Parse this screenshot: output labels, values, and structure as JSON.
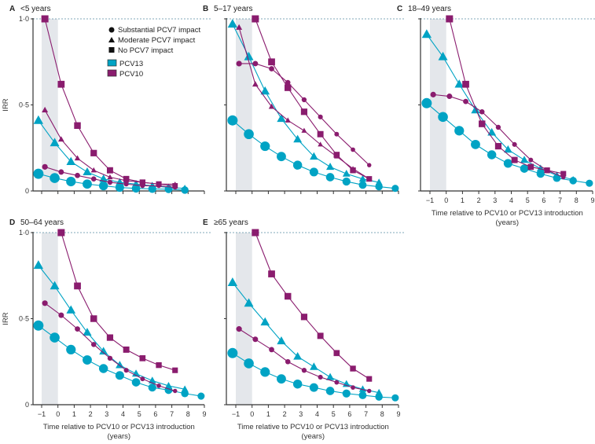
{
  "chart_data": {
    "type": "line",
    "y_axis_label": "IRR",
    "x_axis_label_line1": "Time relative to PCV10 or PCV13 introduction",
    "x_axis_label_line2": "(years)",
    "x_ticks": [
      "−1",
      "0",
      "1",
      "2",
      "3",
      "4",
      "5",
      "6",
      "7",
      "8",
      "9"
    ],
    "y_ticks": [
      "0",
      "0·5",
      "1·0"
    ],
    "ylim": [
      0,
      1
    ],
    "xlim": [
      -1,
      9
    ],
    "reference_line": 1.0,
    "shaded_interval": [
      -1,
      0
    ],
    "colors": {
      "PCV13": "#00a3c4",
      "PCV10": "#8a1c6e",
      "shade": "#e4e7eb"
    },
    "legend": {
      "placement": "top-right of panel A",
      "markers": [
        "Substantial PCV7 impact",
        "Moderate PCV7 impact",
        "No PCV7 impact"
      ],
      "vaccines": [
        "PCV13",
        "PCV10"
      ]
    },
    "panels": [
      {
        "letter": "A",
        "title": "<5 years",
        "series": [
          {
            "vaccine": "PCV13",
            "impact": "substantial",
            "x": [
              -1,
              0,
              1,
              2,
              3,
              4,
              5,
              6,
              7,
              8
            ],
            "values": [
              0.1,
              0.075,
              0.055,
              0.04,
              0.03,
              0.02,
              0.015,
              0.012,
              0.01,
              0.005
            ]
          },
          {
            "vaccine": "PCV13",
            "impact": "moderate",
            "x": [
              -1,
              0,
              1,
              2,
              3,
              4,
              5,
              6,
              7,
              8
            ],
            "values": [
              0.41,
              0.28,
              0.17,
              0.11,
              0.07,
              0.05,
              0.04,
              0.03,
              0.02,
              0.015
            ]
          },
          {
            "vaccine": "PCV10",
            "impact": "substantial",
            "x": [
              -1,
              0,
              1,
              2,
              3,
              4,
              5,
              6,
              7
            ],
            "values": [
              0.14,
              0.11,
              0.09,
              0.07,
              0.05,
              0.04,
              0.03,
              0.03,
              0.02
            ]
          },
          {
            "vaccine": "PCV10",
            "impact": "moderate",
            "x": [
              -1,
              0,
              1,
              2,
              3,
              4,
              5,
              6,
              7
            ],
            "values": [
              0.47,
              0.3,
              0.19,
              0.12,
              0.08,
              0.06,
              0.05,
              0.04,
              0.04
            ]
          },
          {
            "vaccine": "PCV10",
            "impact": "none",
            "x": [
              -1,
              0,
              1,
              2,
              3,
              4,
              5,
              6,
              7
            ],
            "values": [
              1.0,
              0.62,
              0.38,
              0.22,
              0.12,
              0.07,
              0.05,
              0.04,
              0.03
            ]
          }
        ]
      },
      {
        "letter": "B",
        "title": "5–17 years",
        "series": [
          {
            "vaccine": "PCV13",
            "impact": "substantial",
            "x": [
              -1,
              0,
              1,
              2,
              3,
              4,
              5,
              6,
              7,
              8,
              9
            ],
            "values": [
              0.41,
              0.33,
              0.26,
              0.2,
              0.15,
              0.11,
              0.08,
              0.055,
              0.035,
              0.025,
              0.015
            ]
          },
          {
            "vaccine": "PCV13",
            "impact": "moderate",
            "x": [
              -1,
              0,
              1,
              2,
              3,
              4,
              5,
              6,
              7,
              8
            ],
            "values": [
              0.97,
              0.78,
              0.58,
              0.42,
              0.3,
              0.2,
              0.14,
              0.1,
              0.07,
              0.05
            ]
          },
          {
            "vaccine": "PCV10",
            "impact": "substantial",
            "x": [
              -1,
              0,
              1,
              2,
              3,
              4,
              5,
              6,
              7
            ],
            "values": [
              0.74,
              0.74,
              0.71,
              0.63,
              0.53,
              0.43,
              0.33,
              0.24,
              0.15
            ]
          },
          {
            "vaccine": "PCV10",
            "impact": "moderate",
            "x": [
              -1,
              0,
              1,
              2,
              3,
              4,
              5,
              6,
              7
            ],
            "values": [
              0.95,
              0.62,
              0.49,
              0.41,
              0.35,
              0.27,
              0.2,
              0.13,
              0.07
            ]
          },
          {
            "vaccine": "PCV10",
            "impact": "none",
            "x": [
              0,
              1,
              2,
              3,
              4,
              5,
              6,
              7
            ],
            "values": [
              1.0,
              0.75,
              0.6,
              0.46,
              0.33,
              0.21,
              0.12,
              0.07
            ]
          }
        ]
      },
      {
        "letter": "C",
        "title": "18–49 years",
        "series": [
          {
            "vaccine": "PCV13",
            "impact": "substantial",
            "x": [
              -1,
              0,
              1,
              2,
              3,
              4,
              5,
              6,
              7,
              8,
              9
            ],
            "values": [
              0.51,
              0.43,
              0.35,
              0.27,
              0.21,
              0.16,
              0.13,
              0.1,
              0.075,
              0.06,
              0.045
            ]
          },
          {
            "vaccine": "PCV13",
            "impact": "moderate",
            "x": [
              -1,
              0,
              1,
              2,
              3,
              4,
              5,
              6,
              7,
              8
            ],
            "values": [
              0.91,
              0.78,
              0.62,
              0.47,
              0.34,
              0.24,
              0.18,
              0.13,
              0.09,
              0.065
            ]
          },
          {
            "vaccine": "PCV10",
            "impact": "substantial",
            "x": [
              -1,
              0,
              1,
              2,
              3,
              4,
              5,
              6,
              7
            ],
            "values": [
              0.56,
              0.55,
              0.52,
              0.46,
              0.37,
              0.27,
              0.18,
              0.12,
              0.08
            ]
          },
          {
            "vaccine": "PCV10",
            "impact": "none",
            "x": [
              0,
              1,
              2,
              3,
              4,
              5,
              6,
              7
            ],
            "values": [
              1.0,
              0.62,
              0.39,
              0.26,
              0.18,
              0.14,
              0.12,
              0.1
            ]
          }
        ]
      },
      {
        "letter": "D",
        "title": "50–64 years",
        "series": [
          {
            "vaccine": "PCV13",
            "impact": "substantial",
            "x": [
              -1,
              0,
              1,
              2,
              3,
              4,
              5,
              6,
              7,
              8,
              9
            ],
            "values": [
              0.46,
              0.39,
              0.32,
              0.26,
              0.21,
              0.17,
              0.13,
              0.1,
              0.085,
              0.065,
              0.05
            ]
          },
          {
            "vaccine": "PCV13",
            "impact": "moderate",
            "x": [
              -1,
              0,
              1,
              2,
              3,
              4,
              5,
              6,
              7,
              8
            ],
            "values": [
              0.81,
              0.69,
              0.55,
              0.42,
              0.31,
              0.23,
              0.18,
              0.14,
              0.11,
              0.09
            ]
          },
          {
            "vaccine": "PCV10",
            "impact": "substantial",
            "x": [
              -1,
              0,
              1,
              2,
              3,
              4,
              5,
              6,
              7
            ],
            "values": [
              0.59,
              0.52,
              0.44,
              0.35,
              0.27,
              0.2,
              0.15,
              0.11,
              0.08
            ]
          },
          {
            "vaccine": "PCV10",
            "impact": "none",
            "x": [
              0,
              1,
              2,
              3,
              4,
              5,
              6,
              7
            ],
            "values": [
              1.0,
              0.69,
              0.5,
              0.39,
              0.32,
              0.27,
              0.23,
              0.2
            ]
          }
        ]
      },
      {
        "letter": "E",
        "title": "≥65 years",
        "series": [
          {
            "vaccine": "PCV13",
            "impact": "substantial",
            "x": [
              -1,
              0,
              1,
              2,
              3,
              4,
              5,
              6,
              7,
              8,
              9
            ],
            "values": [
              0.3,
              0.24,
              0.19,
              0.15,
              0.12,
              0.1,
              0.08,
              0.065,
              0.055,
              0.045,
              0.04
            ]
          },
          {
            "vaccine": "PCV13",
            "impact": "moderate",
            "x": [
              -1,
              0,
              1,
              2,
              3,
              4,
              5,
              6,
              7,
              8
            ],
            "values": [
              0.71,
              0.59,
              0.48,
              0.37,
              0.28,
              0.22,
              0.16,
              0.12,
              0.09,
              0.07
            ]
          },
          {
            "vaccine": "PCV10",
            "impact": "substantial",
            "x": [
              -1,
              0,
              1,
              2,
              3,
              4,
              5,
              6,
              7
            ],
            "values": [
              0.44,
              0.38,
              0.32,
              0.25,
              0.2,
              0.16,
              0.13,
              0.1,
              0.08
            ]
          },
          {
            "vaccine": "PCV10",
            "impact": "none",
            "x": [
              0,
              1,
              2,
              3,
              4,
              5,
              6,
              7
            ],
            "values": [
              1.0,
              0.76,
              0.63,
              0.51,
              0.4,
              0.3,
              0.21,
              0.15
            ]
          }
        ]
      }
    ]
  }
}
